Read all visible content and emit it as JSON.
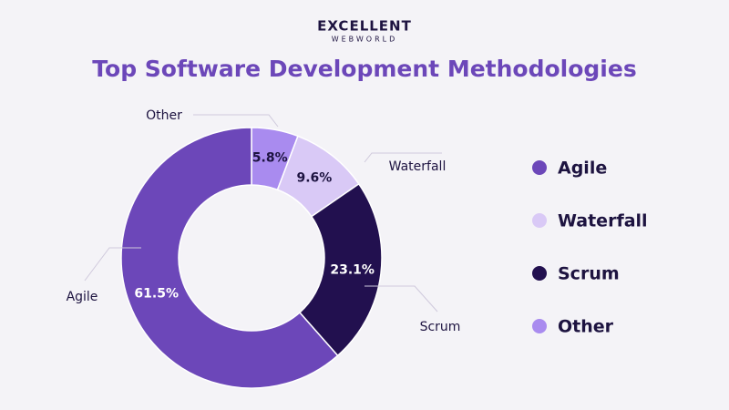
{
  "brand": {
    "line1": "EXCELLENT",
    "line2": "WEBWORLD"
  },
  "chart_data": {
    "type": "donut",
    "title": "Top Software Development Methodologies",
    "categories": [
      "Agile",
      "Waterfall",
      "Scrum",
      "Other"
    ],
    "values": [
      61.5,
      9.6,
      23.1,
      5.8
    ],
    "value_labels": [
      "61.5%",
      "9.6%",
      "23.1%",
      "5.8%"
    ],
    "colors": [
      "#6c47b9",
      "#d9c9f6",
      "#22104f",
      "#a98bef"
    ],
    "legend": "right"
  }
}
